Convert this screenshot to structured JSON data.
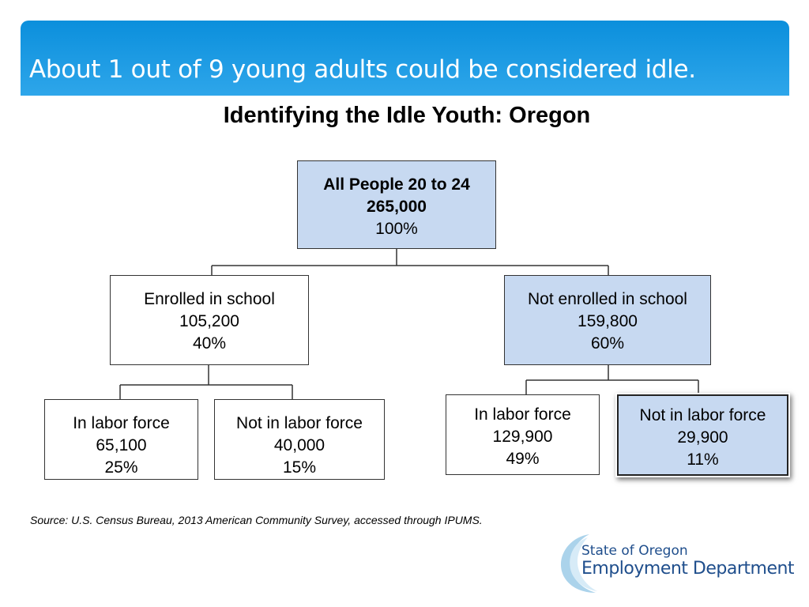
{
  "header": {
    "title": "About 1 out of 9 young adults could be considered idle.",
    "bar_color": "#1a9be2"
  },
  "chart": {
    "title": "Identifying the Idle Youth: Oregon"
  },
  "nodes": {
    "root": {
      "label": "All People 20 to 24",
      "count": "265,000",
      "percent": "100%"
    },
    "enrolled": {
      "label": "Enrolled in school",
      "count": "105,200",
      "percent": "40%"
    },
    "not_enrolled": {
      "label": "Not enrolled in school",
      "count": "159,800",
      "percent": "60%"
    },
    "enrolled_in_lf": {
      "label": "In labor force",
      "count": "65,100",
      "percent": "25%"
    },
    "enrolled_not_lf": {
      "label": "Not in labor force",
      "count": "40,000",
      "percent": "15%"
    },
    "not_enrolled_in_lf": {
      "label": "In labor force",
      "count": "129,900",
      "percent": "49%"
    },
    "not_enrolled_not_lf": {
      "label": "Not in labor force",
      "count": "29,900",
      "percent": "11%"
    }
  },
  "source": "Source: U.S. Census Bureau, 2013 American Community Survey, accessed through IPUMS.",
  "logo": {
    "line1": "State of Oregon",
    "line2": "Employment Department"
  },
  "colors": {
    "highlight_box": "#c7d9f1",
    "logo_text": "#1f4e8c"
  }
}
